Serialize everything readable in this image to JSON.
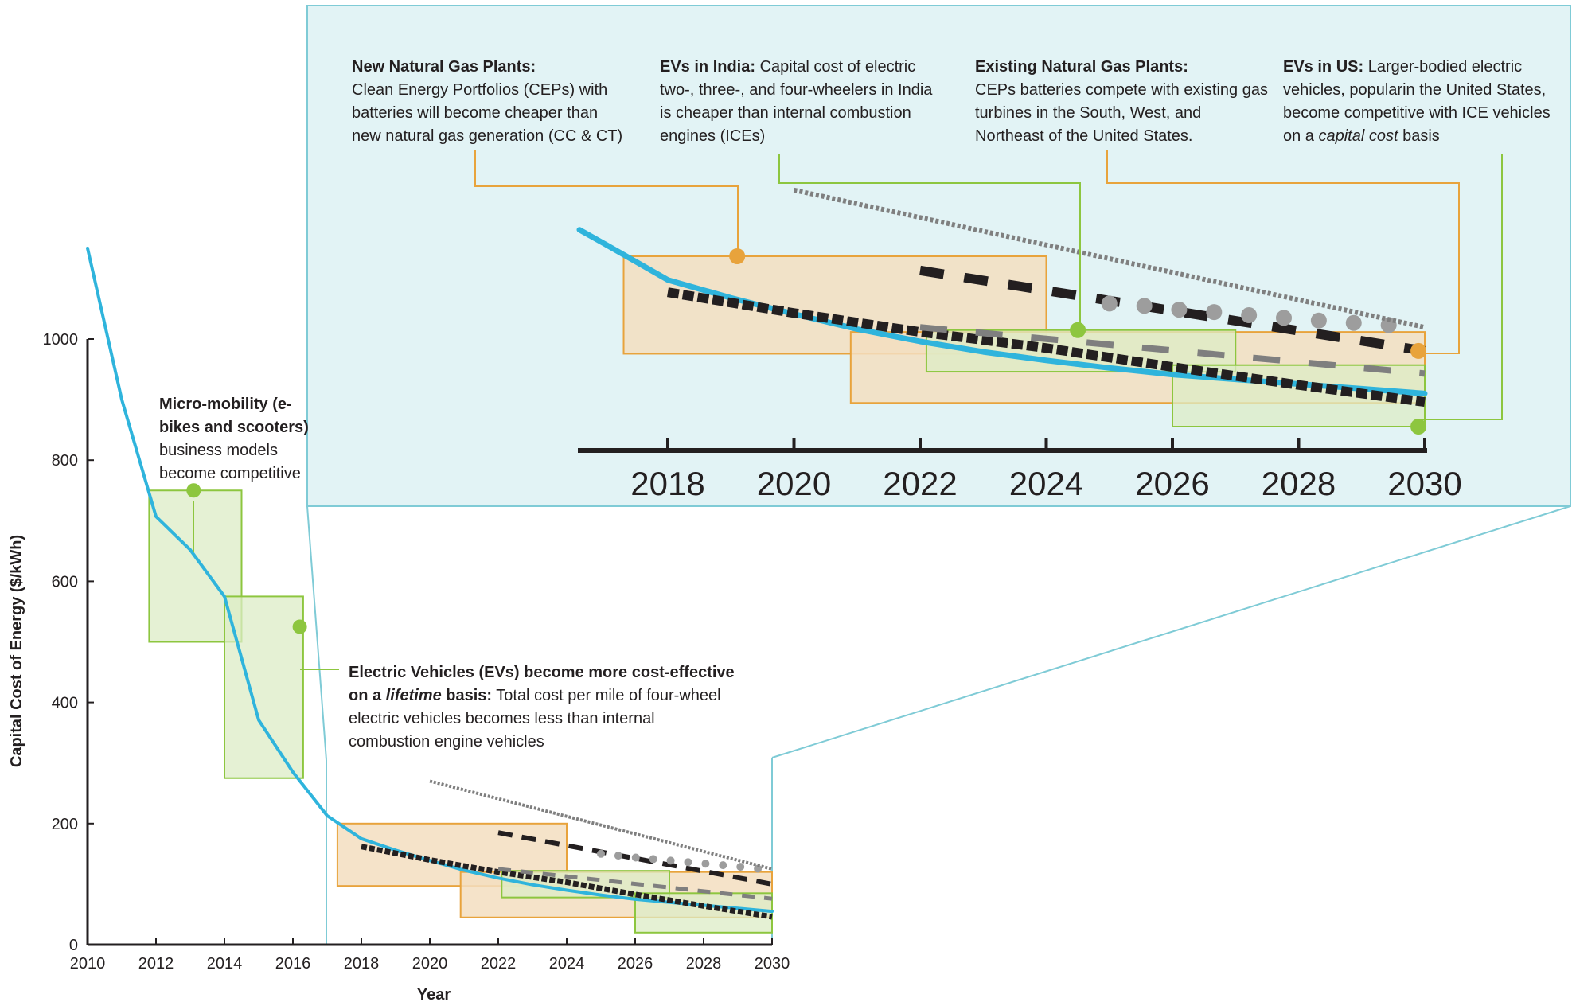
{
  "chart_data": [
    {
      "type": "line",
      "panel": "main",
      "xlabel": "Year",
      "ylabel": "Capital Cost of Energy ($/kWh)",
      "xlim": [
        2010,
        2030
      ],
      "ylim": [
        0,
        1150
      ],
      "x_ticks": [
        "2010",
        "2012",
        "2014",
        "2016",
        "2018",
        "2020",
        "2022",
        "2024",
        "2026",
        "2028",
        "2030"
      ],
      "y_ticks": [
        "0",
        "200",
        "400",
        "600",
        "800",
        "1000"
      ],
      "grid": false,
      "series": [
        {
          "style": "solid-blue",
          "x": [
            2010,
            2011,
            2012,
            2013,
            2014,
            2015,
            2016,
            2017,
            2018,
            2019,
            2020,
            2021,
            2022,
            2023,
            2024,
            2025,
            2026,
            2027,
            2028,
            2029,
            2030
          ],
          "y": [
            1150,
            900,
            707,
            652,
            575,
            371,
            285,
            213,
            175,
            156,
            139,
            123,
            110,
            99,
            90,
            82,
            75,
            70,
            65,
            60,
            55
          ]
        },
        {
          "style": "dense-dotted-black",
          "x": [
            2018,
            2020,
            2022,
            2024,
            2026,
            2028,
            2030
          ],
          "y": [
            162,
            140,
            120,
            103,
            83,
            64,
            46
          ]
        },
        {
          "style": "dashed-black",
          "x": [
            2022,
            2030
          ],
          "y": [
            185,
            100
          ]
        },
        {
          "style": "dashed-gray",
          "x": [
            2022,
            2030
          ],
          "y": [
            125,
            76
          ]
        },
        {
          "style": "dotted-gray-circles",
          "x": [
            2025,
            2026,
            2027,
            2028,
            2029,
            2030
          ],
          "y": [
            150,
            144,
            139,
            134,
            129,
            123
          ]
        },
        {
          "style": "fine-dotted-gray",
          "x": [
            2020,
            2030
          ],
          "y": [
            270,
            125
          ]
        }
      ],
      "boxes": [
        {
          "color": "green",
          "x": [
            2011.8,
            2014.5
          ],
          "y": [
            500,
            750
          ]
        },
        {
          "color": "green",
          "x": [
            2014,
            2016.3
          ],
          "y": [
            275,
            575
          ]
        },
        {
          "color": "orange",
          "x": [
            2017.3,
            2024
          ],
          "y": [
            97,
            200
          ]
        },
        {
          "color": "orange",
          "x": [
            2020.9,
            2030
          ],
          "y": [
            45,
            120
          ]
        },
        {
          "color": "green",
          "x": [
            2022.1,
            2027
          ],
          "y": [
            78,
            122
          ]
        },
        {
          "color": "green",
          "x": [
            2026,
            2030
          ],
          "y": [
            20,
            85
          ]
        }
      ],
      "markers": [
        {
          "color": "green",
          "x": 2013.1,
          "y": 750
        },
        {
          "color": "green",
          "x": 2016.2,
          "y": 525
        }
      ]
    },
    {
      "type": "line",
      "panel": "inset",
      "xlim": [
        2016.6,
        2030
      ],
      "ylim": [
        0,
        230
      ],
      "x_ticks": [
        "2018",
        "2020",
        "2022",
        "2024",
        "2026",
        "2028",
        "2030"
      ],
      "series": [
        {
          "style": "solid-blue",
          "x": [
            2016.6,
            2017,
            2018,
            2019,
            2020,
            2021,
            2022,
            2023,
            2024,
            2025,
            2026,
            2027,
            2028,
            2029,
            2030
          ],
          "y": [
            228,
            213,
            175,
            156,
            139,
            123,
            110,
            99,
            90,
            82,
            75,
            70,
            65,
            60,
            55
          ]
        },
        {
          "style": "dense-dotted-black",
          "x": [
            2018,
            2020,
            2022,
            2024,
            2026,
            2028,
            2030
          ],
          "y": [
            162,
            140,
            120,
            103,
            83,
            64,
            46
          ]
        },
        {
          "style": "dashed-black",
          "x": [
            2022,
            2030
          ],
          "y": [
            185,
            100
          ]
        },
        {
          "style": "dashed-gray",
          "x": [
            2022,
            2030
          ],
          "y": [
            125,
            76
          ]
        },
        {
          "style": "dotted-gray-circles",
          "x": [
            2025,
            2025.5,
            2026,
            2026.5,
            2027,
            2027.5,
            2028,
            2028.5,
            2029,
            2029.5
          ],
          "y": [
            150,
            148,
            144,
            142,
            139,
            136,
            134,
            131,
            129,
            127
          ]
        },
        {
          "style": "fine-dotted-gray",
          "x": [
            2020,
            2030
          ],
          "y": [
            270,
            125
          ]
        }
      ],
      "boxes": [
        {
          "color": "orange",
          "x": [
            2017.3,
            2024
          ],
          "y": [
            97,
            200
          ]
        },
        {
          "color": "orange",
          "x": [
            2020.9,
            2030
          ],
          "y": [
            45,
            120
          ]
        },
        {
          "color": "green",
          "x": [
            2022.1,
            2027
          ],
          "y": [
            78,
            122
          ]
        },
        {
          "color": "green",
          "x": [
            2026,
            2030
          ],
          "y": [
            20,
            85
          ]
        }
      ],
      "markers": [
        {
          "color": "orange",
          "x": 2019.1,
          "y": 200
        },
        {
          "color": "green",
          "x": 2024.5,
          "y": 122
        },
        {
          "color": "orange",
          "x": 2029.9,
          "y": 100
        },
        {
          "color": "green",
          "x": 2029.9,
          "y": 20
        }
      ]
    }
  ],
  "annotations": {
    "micromobility": {
      "bold": "Micro-mobility (e-bikes and scooters)",
      "text": " business models become competitive"
    },
    "ev_lifetime": {
      "bold1": "Electric Vehicles (EVs) become more cost-effective on a ",
      "italic": "lifetime",
      "bold2": " basis:",
      "text": " Total cost per mile of four-wheel electric vehicles becomes less than internal combustion engine vehicles"
    },
    "new_gas": {
      "bold": "New Natural Gas Plants:",
      "text": "Clean Energy Portfolios (CEPs) with batteries will become cheaper than new natural gas generation (CC & CT)"
    },
    "ev_india": {
      "bold": "EVs in India:",
      "text": " Capital cost of electric two-, three-, and four-wheelers in India is cheaper than internal combustion engines (ICEs)"
    },
    "existing_gas": {
      "bold": "Existing Natural Gas Plants:",
      "text": "CEPs batteries compete with existing gas turbines in the South, West, and Northeast of the United States."
    },
    "ev_us": {
      "bold": "EVs in US:",
      "text1": " Larger-bodied electric vehicles, popularin the United States, become competitive with ICE vehicles on a ",
      "italic": "capital cost",
      "text2": " basis"
    }
  },
  "colors": {
    "blue_line": "#2fb4dc",
    "black": "#231f20",
    "gray": "#7f7f7f",
    "light_gray": "#9d9d9d",
    "orange": "#e8a33c",
    "orange_fill": "#f3dec0",
    "green": "#8dc63f",
    "green_fill": "#dcecc6",
    "inset_bg": "#e2f3f5",
    "inset_border": "#7fcbd6"
  }
}
